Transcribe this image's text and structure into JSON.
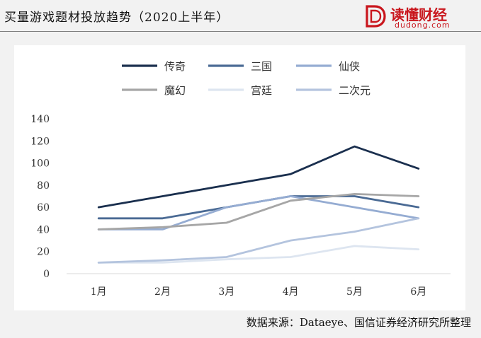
{
  "header": {
    "title": "买量游戏题材投放趋势（2020上半年）",
    "brand_name": "读懂财经",
    "brand_url": "dudong.com",
    "brand_color": "#c9161d"
  },
  "source": "数据来源：Dataeye、国信证券经济研究所整理",
  "chart_data": {
    "type": "line",
    "categories": [
      "1月",
      "2月",
      "3月",
      "4月",
      "5月",
      "6月"
    ],
    "ylim": [
      0,
      140
    ],
    "yticks": [
      0,
      20,
      40,
      60,
      80,
      100,
      120,
      140
    ],
    "grid": false,
    "legend_position": "top",
    "series": [
      {
        "name": "传奇",
        "color": "#1a2f4e",
        "values": [
          60,
          70,
          80,
          90,
          115,
          95
        ]
      },
      {
        "name": "三国",
        "color": "#4a6a94",
        "values": [
          50,
          50,
          60,
          70,
          70,
          60
        ]
      },
      {
        "name": "仙侠",
        "color": "#95acd2",
        "values": [
          40,
          40,
          60,
          70,
          60,
          50
        ]
      },
      {
        "name": "魔幻",
        "color": "#a6a6a6",
        "values": [
          40,
          42,
          46,
          66,
          72,
          70
        ]
      },
      {
        "name": "宫廷",
        "color": "#dde5f0",
        "values": [
          10,
          10,
          13,
          15,
          25,
          22
        ]
      },
      {
        "name": "二次元",
        "color": "#b4c4de",
        "values": [
          10,
          12,
          15,
          30,
          38,
          50
        ]
      }
    ]
  }
}
